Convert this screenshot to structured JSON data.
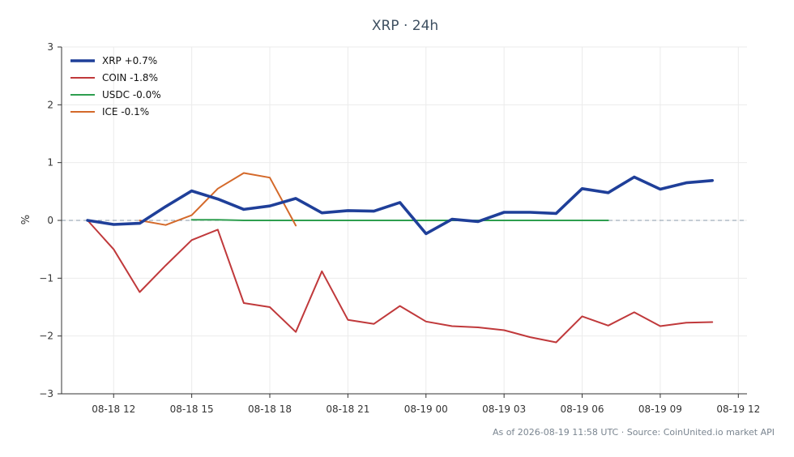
{
  "chart_data": {
    "type": "line",
    "title": "XRP · 24h",
    "xlabel": "",
    "ylabel": "%",
    "ylim": [
      -3,
      3
    ],
    "yticks": [
      {
        "value": 3,
        "label": "3"
      },
      {
        "value": 2,
        "label": "2"
      },
      {
        "value": 1,
        "label": "1"
      },
      {
        "value": 0,
        "label": "0"
      },
      {
        "value": -1,
        "label": "−1"
      },
      {
        "value": -2,
        "label": "−2"
      },
      {
        "value": -3,
        "label": "−3"
      }
    ],
    "xlim": [
      "08-18 10:00",
      "08-19 12:20"
    ],
    "xticks": [
      {
        "value": "08-18 12:00",
        "label": "08-18 12"
      },
      {
        "value": "08-18 15:00",
        "label": "08-18 15"
      },
      {
        "value": "08-18 18:00",
        "label": "08-18 18"
      },
      {
        "value": "08-18 21:00",
        "label": "08-18 21"
      },
      {
        "value": "08-19 00:00",
        "label": "08-19 00"
      },
      {
        "value": "08-19 03:00",
        "label": "08-19 03"
      },
      {
        "value": "08-19 06:00",
        "label": "08-19 06"
      },
      {
        "value": "08-19 09:00",
        "label": "08-19 09"
      },
      {
        "value": "08-19 12:00",
        "label": "08-19 12"
      }
    ],
    "grid": true,
    "zero_line": true,
    "legend_position": "top-left",
    "series": [
      {
        "name": "XRP +0.7%",
        "color": "#1f3f99",
        "emphasis": true,
        "points": [
          {
            "x": "08-18 11:00",
            "y": 0.0
          },
          {
            "x": "08-18 12:00",
            "y": -0.07
          },
          {
            "x": "08-18 13:00",
            "y": -0.05
          },
          {
            "x": "08-18 14:00",
            "y": 0.24
          },
          {
            "x": "08-18 15:00",
            "y": 0.51
          },
          {
            "x": "08-18 16:00",
            "y": 0.37
          },
          {
            "x": "08-18 17:00",
            "y": 0.19
          },
          {
            "x": "08-18 18:00",
            "y": 0.25
          },
          {
            "x": "08-18 19:00",
            "y": 0.38
          },
          {
            "x": "08-18 20:00",
            "y": 0.13
          },
          {
            "x": "08-18 21:00",
            "y": 0.17
          },
          {
            "x": "08-18 22:00",
            "y": 0.16
          },
          {
            "x": "08-18 23:00",
            "y": 0.31
          },
          {
            "x": "08-19 00:00",
            "y": -0.23
          },
          {
            "x": "08-19 01:00",
            "y": 0.02
          },
          {
            "x": "08-19 02:00",
            "y": -0.02
          },
          {
            "x": "08-19 03:00",
            "y": 0.14
          },
          {
            "x": "08-19 04:00",
            "y": 0.14
          },
          {
            "x": "08-19 05:00",
            "y": 0.12
          },
          {
            "x": "08-19 06:00",
            "y": 0.55
          },
          {
            "x": "08-19 07:00",
            "y": 0.48
          },
          {
            "x": "08-19 08:00",
            "y": 0.75
          },
          {
            "x": "08-19 09:00",
            "y": 0.54
          },
          {
            "x": "08-19 10:00",
            "y": 0.65
          },
          {
            "x": "08-19 11:00",
            "y": 0.69
          }
        ]
      },
      {
        "name": "COIN -1.8%",
        "color": "#c0393b",
        "emphasis": false,
        "points": [
          {
            "x": "08-18 11:00",
            "y": 0.0
          },
          {
            "x": "08-18 12:00",
            "y": -0.5
          },
          {
            "x": "08-18 13:00",
            "y": -1.24
          },
          {
            "x": "08-18 14:00",
            "y": -0.78
          },
          {
            "x": "08-18 15:00",
            "y": -0.34
          },
          {
            "x": "08-18 16:00",
            "y": -0.16
          },
          {
            "x": "08-18 17:00",
            "y": -1.43
          },
          {
            "x": "08-18 18:00",
            "y": -1.5
          },
          {
            "x": "08-18 19:00",
            "y": -1.93
          },
          {
            "x": "08-18 20:00",
            "y": -0.88
          },
          {
            "x": "08-18 21:00",
            "y": -1.72
          },
          {
            "x": "08-18 22:00",
            "y": -1.79
          },
          {
            "x": "08-18 23:00",
            "y": -1.48
          },
          {
            "x": "08-19 00:00",
            "y": -1.75
          },
          {
            "x": "08-19 01:00",
            "y": -1.83
          },
          {
            "x": "08-19 02:00",
            "y": -1.85
          },
          {
            "x": "08-19 03:00",
            "y": -1.9
          },
          {
            "x": "08-19 04:00",
            "y": -2.02
          },
          {
            "x": "08-19 05:00",
            "y": -2.11
          },
          {
            "x": "08-19 06:00",
            "y": -1.66
          },
          {
            "x": "08-19 07:00",
            "y": -1.82
          },
          {
            "x": "08-19 08:00",
            "y": -1.59
          },
          {
            "x": "08-19 09:00",
            "y": -1.83
          },
          {
            "x": "08-19 10:00",
            "y": -1.77
          },
          {
            "x": "08-19 11:00",
            "y": -1.76
          }
        ]
      },
      {
        "name": "USDC -0.0%",
        "color": "#2e9e4f",
        "emphasis": false,
        "points": [
          {
            "x": "08-18 15:00",
            "y": 0.01
          },
          {
            "x": "08-18 16:00",
            "y": 0.01
          },
          {
            "x": "08-18 17:00",
            "y": 0.0
          },
          {
            "x": "08-18 18:00",
            "y": 0.0
          },
          {
            "x": "08-18 19:00",
            "y": 0.0
          },
          {
            "x": "08-18 20:00",
            "y": 0.0
          },
          {
            "x": "08-18 21:00",
            "y": 0.0
          },
          {
            "x": "08-18 22:00",
            "y": 0.0
          },
          {
            "x": "08-18 23:00",
            "y": 0.0
          },
          {
            "x": "08-19 00:00",
            "y": 0.0
          },
          {
            "x": "08-19 01:00",
            "y": 0.0
          },
          {
            "x": "08-19 02:00",
            "y": 0.0
          },
          {
            "x": "08-19 03:00",
            "y": 0.0
          },
          {
            "x": "08-19 04:00",
            "y": 0.0
          },
          {
            "x": "08-19 05:00",
            "y": 0.0
          },
          {
            "x": "08-19 06:00",
            "y": 0.0
          },
          {
            "x": "08-19 07:00",
            "y": 0.0
          }
        ]
      },
      {
        "name": "ICE -0.1%",
        "color": "#d4692a",
        "emphasis": false,
        "points": [
          {
            "x": "08-18 13:00",
            "y": 0.0
          },
          {
            "x": "08-18 14:00",
            "y": -0.08
          },
          {
            "x": "08-18 15:00",
            "y": 0.09
          },
          {
            "x": "08-18 16:00",
            "y": 0.55
          },
          {
            "x": "08-18 17:00",
            "y": 0.82
          },
          {
            "x": "08-18 18:00",
            "y": 0.74
          },
          {
            "x": "08-18 19:00",
            "y": -0.09
          }
        ]
      }
    ]
  },
  "footer": {
    "text": "As of 2026-08-19 11:58 UTC · Source: CoinUnited.io market API"
  },
  "colors": {
    "title": "#3d4f60",
    "axis": "#333333",
    "grid": "#ebebeb",
    "zero_line": "#8899aa",
    "footer": "#7a8590"
  }
}
